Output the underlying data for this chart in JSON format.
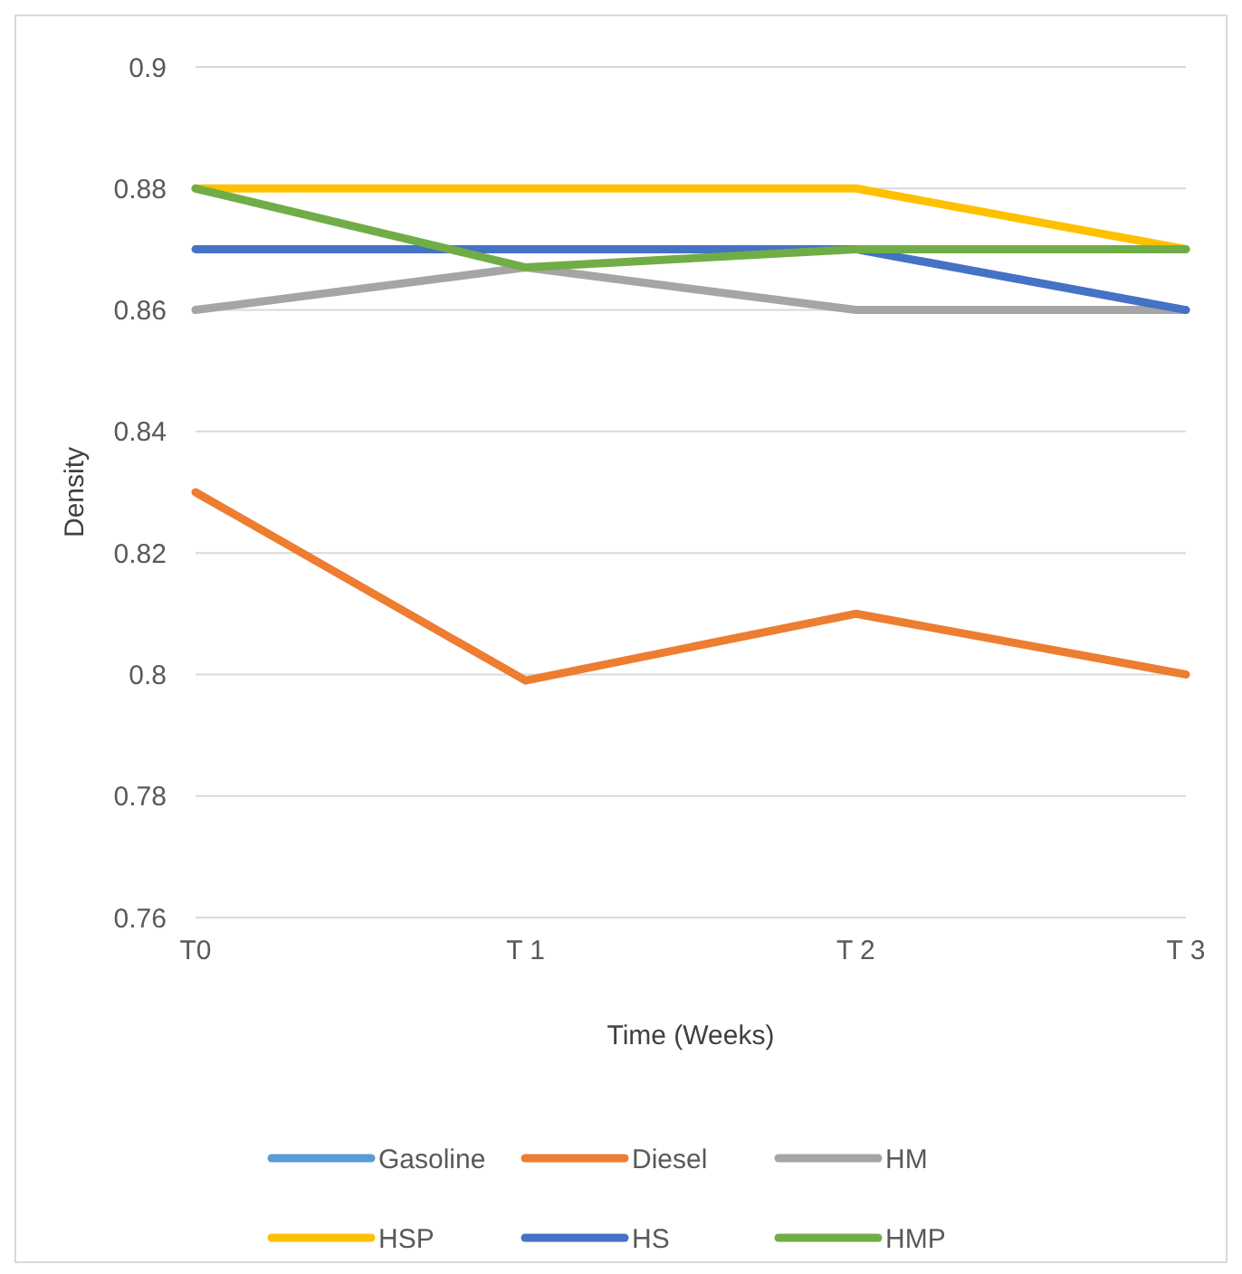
{
  "chart_data": {
    "type": "line",
    "xlabel": "Time (Weeks)",
    "ylabel": "Density",
    "categories": [
      "T0",
      "T 1",
      "T 2",
      "T 3"
    ],
    "ylim": [
      0.76,
      0.9
    ],
    "yticks": [
      0.76,
      0.78,
      0.8,
      0.82,
      0.84,
      0.86,
      0.88,
      0.9
    ],
    "grid": "y",
    "legend": "bottom",
    "marker": "none",
    "line_style": "solid",
    "series": [
      {
        "name": "Gasoline",
        "color": "#5b9bd5",
        "values": [
          null,
          null,
          null,
          null
        ]
      },
      {
        "name": "Diesel",
        "color": "#ed7d31",
        "values": [
          0.83,
          0.799,
          0.81,
          0.8
        ]
      },
      {
        "name": "HM",
        "color": "#a5a5a5",
        "values": [
          0.86,
          0.867,
          0.86,
          0.86
        ]
      },
      {
        "name": "HSP",
        "color": "#ffc000",
        "values": [
          0.88,
          0.88,
          0.88,
          0.87
        ]
      },
      {
        "name": "HS",
        "color": "#4472c4",
        "values": [
          0.87,
          0.87,
          0.87,
          0.86
        ]
      },
      {
        "name": "HMP",
        "color": "#70ad47",
        "values": [
          0.88,
          0.867,
          0.87,
          0.87
        ]
      }
    ]
  }
}
